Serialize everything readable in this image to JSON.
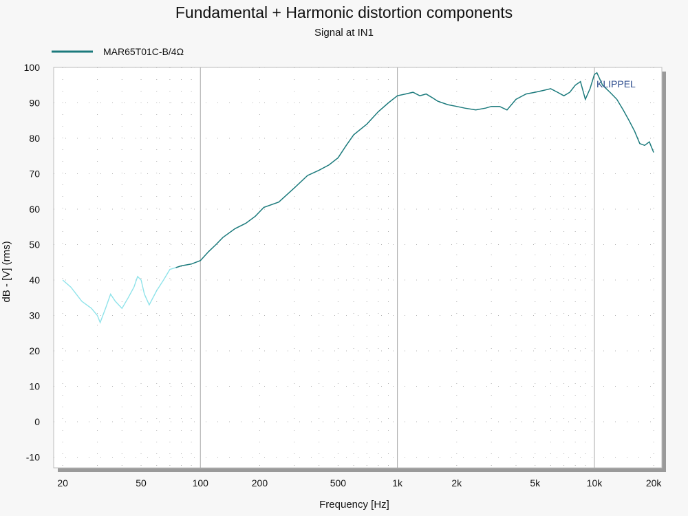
{
  "chart_data": {
    "type": "line",
    "title": "Fundamental + Harmonic distortion components",
    "subtitle": "Signal at IN1",
    "xlabel": "Frequency [Hz]",
    "ylabel": "dB - [V]  (rms)",
    "watermark": "KLIPPEL",
    "x_scale": "log",
    "xlim": [
      18,
      22000
    ],
    "ylim": [
      -13,
      100
    ],
    "x_ticks": [
      {
        "value": 20,
        "label": "20"
      },
      {
        "value": 50,
        "label": "50"
      },
      {
        "value": 100,
        "label": "100"
      },
      {
        "value": 200,
        "label": "200"
      },
      {
        "value": 500,
        "label": "500"
      },
      {
        "value": 1000,
        "label": "1k"
      },
      {
        "value": 2000,
        "label": "2k"
      },
      {
        "value": 5000,
        "label": "5k"
      },
      {
        "value": 10000,
        "label": "10k"
      },
      {
        "value": 20000,
        "label": "20k"
      }
    ],
    "y_ticks": [
      100,
      90,
      80,
      70,
      60,
      50,
      40,
      30,
      20,
      10,
      0,
      -10
    ],
    "major_grid_x": [
      100,
      1000,
      10000
    ],
    "minor_grid": "dotted",
    "legend_position": "top-left",
    "series": [
      {
        "name": "MAR65T01C-B/4Ω",
        "color": "#1b7a7c",
        "low_freq_color": "#8fe3ea",
        "x": [
          20,
          22,
          25,
          28,
          30,
          31,
          33,
          35,
          37,
          40,
          43,
          46,
          48,
          50,
          52,
          55,
          60,
          65,
          70,
          75,
          80,
          90,
          100,
          110,
          120,
          130,
          150,
          170,
          190,
          210,
          250,
          300,
          350,
          400,
          450,
          500,
          550,
          600,
          700,
          800,
          900,
          1000,
          1100,
          1200,
          1300,
          1400,
          1500,
          1600,
          1800,
          2000,
          2200,
          2500,
          2800,
          3000,
          3300,
          3600,
          4000,
          4500,
          5000,
          5500,
          6000,
          6500,
          7000,
          7500,
          8000,
          8500,
          9000,
          9500,
          10000,
          10300,
          11000,
          12000,
          13000,
          14000,
          15000,
          16000,
          17000,
          18000,
          19000,
          20000
        ],
        "y": [
          40,
          38,
          34,
          32,
          30,
          28,
          32,
          36,
          34,
          32,
          35,
          38,
          41,
          40,
          36,
          33,
          37,
          40,
          43,
          43.5,
          44,
          44.5,
          45.5,
          48,
          50,
          52,
          54.5,
          56,
          58,
          60.5,
          62,
          66,
          69.5,
          71,
          72.5,
          74.5,
          78,
          81,
          84,
          87.5,
          90,
          92,
          92.5,
          93,
          92,
          92.5,
          91.5,
          90.5,
          89.5,
          89,
          88.5,
          88,
          88.5,
          89,
          89,
          88,
          91,
          92.5,
          93,
          93.5,
          94,
          93,
          92,
          93,
          95,
          96,
          91,
          94,
          98,
          98.5,
          95,
          93,
          91,
          88,
          85,
          82,
          78.5,
          78,
          79,
          76
        ]
      }
    ]
  }
}
